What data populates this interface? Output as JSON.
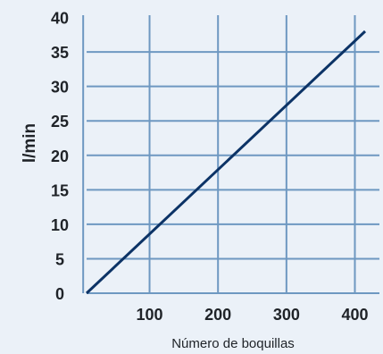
{
  "chart_data": {
    "type": "line",
    "title": "",
    "xlabel": "Número de boquillas",
    "ylabel": "l/min",
    "xlim": [
      8,
      425
    ],
    "ylim": [
      0,
      40
    ],
    "x_ticks": [
      100,
      200,
      300,
      400
    ],
    "y_ticks": [
      0,
      5,
      10,
      15,
      20,
      25,
      30,
      35,
      40
    ],
    "x_grid": [
      3,
      100,
      200,
      300,
      400
    ],
    "y_grid": [
      5,
      10,
      15,
      20,
      25,
      30,
      35
    ],
    "grid": true,
    "series": [
      {
        "x": [
          8,
          415
        ],
        "y": [
          0,
          38
        ],
        "color": "#0c3366"
      }
    ],
    "colors": {
      "grid": "#6e98c1",
      "background": "#ebf1f8",
      "line": "#0c3366"
    }
  }
}
